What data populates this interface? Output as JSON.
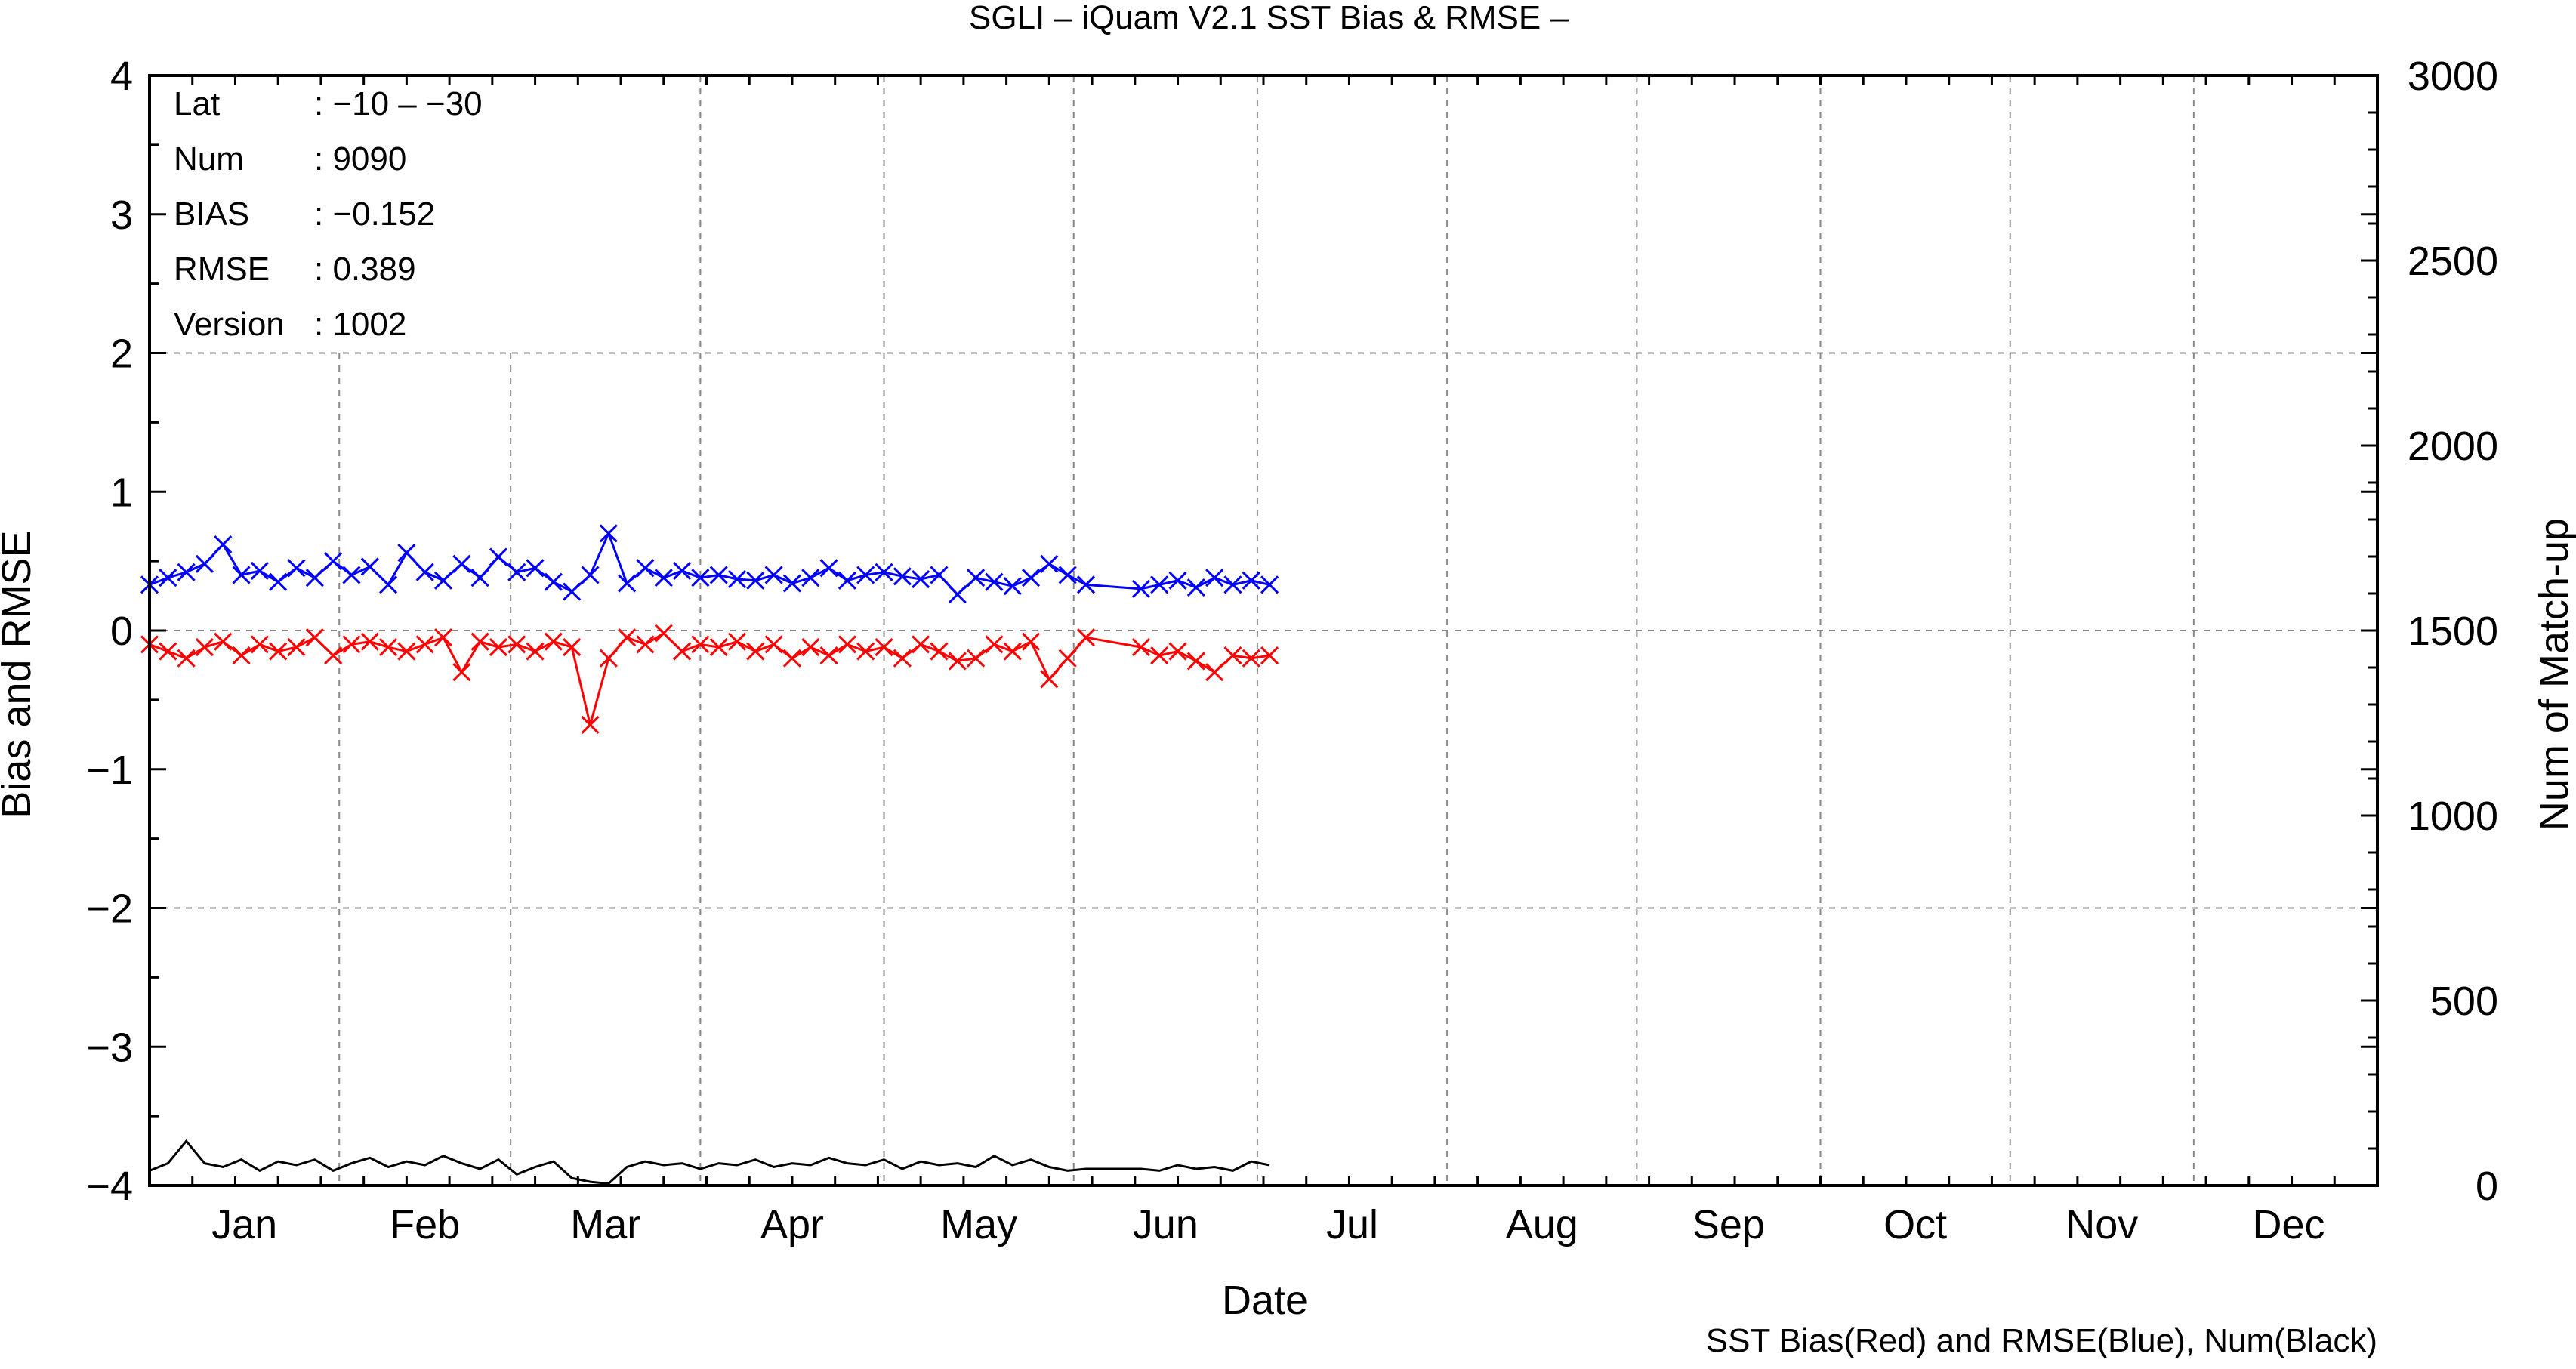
{
  "chart_data": {
    "type": "line",
    "title": "SGLI – iQuam V2.1 SST Bias & RMSE  –",
    "xlabel": "Date",
    "ylabel": "Bias and RMSE",
    "y2label": "Num of Match-up",
    "footer": "SST Bias(Red) and RMSE(Blue), Num(Black)",
    "x_unit": "day of year",
    "xlim": [
      1,
      365
    ],
    "ylim": [
      -4,
      4
    ],
    "y2lim": [
      0,
      3000
    ],
    "grid": true,
    "month_labels": [
      "Jan",
      "Feb",
      "Mar",
      "Apr",
      "May",
      "Jun",
      "Jul",
      "Aug",
      "Sep",
      "Oct",
      "Nov",
      "Dec"
    ],
    "y_ticks": [
      "4",
      "3",
      "2",
      "1",
      "0",
      "−1",
      "−2",
      "−3",
      "−4"
    ],
    "y2_ticks": [
      "3000",
      "2500",
      "2000",
      "1500",
      "1000",
      "500",
      "0"
    ],
    "stats": {
      "lat_label": "Lat",
      "lat_value": ": −10 – −30",
      "num_label": "Num",
      "num_value": ": 9090",
      "bias_label": "BIAS",
      "bias_value": ": −0.152",
      "rmse_label": "RMSE",
      "rmse_value": ": 0.389",
      "version_label": "Version",
      "version_value": ": 1002"
    },
    "series": [
      {
        "name": "RMSE",
        "color": "#0000ff",
        "axis": "left",
        "x": [
          1,
          4,
          7,
          10,
          13,
          16,
          19,
          22,
          25,
          28,
          31,
          34,
          37,
          40,
          43,
          46,
          49,
          52,
          55,
          58,
          61,
          64,
          67,
          70,
          73,
          76,
          79,
          82,
          85,
          88,
          91,
          94,
          97,
          100,
          103,
          106,
          109,
          112,
          115,
          118,
          121,
          124,
          127,
          130,
          133,
          136,
          139,
          142,
          145,
          148,
          151,
          154,
          163,
          166,
          169,
          172,
          175,
          178,
          181,
          184
        ],
        "y": [
          0.33,
          0.38,
          0.42,
          0.48,
          0.62,
          0.4,
          0.43,
          0.35,
          0.45,
          0.38,
          0.5,
          0.4,
          0.46,
          0.33,
          0.56,
          0.42,
          0.36,
          0.48,
          0.38,
          0.53,
          0.42,
          0.45,
          0.35,
          0.28,
          0.4,
          0.7,
          0.34,
          0.45,
          0.38,
          0.43,
          0.38,
          0.4,
          0.37,
          0.36,
          0.4,
          0.34,
          0.38,
          0.45,
          0.36,
          0.4,
          0.42,
          0.39,
          0.37,
          0.4,
          0.26,
          0.38,
          0.35,
          0.32,
          0.38,
          0.48,
          0.4,
          0.33,
          0.3,
          0.33,
          0.36,
          0.31,
          0.38,
          0.33,
          0.36,
          0.33
        ]
      },
      {
        "name": "Bias",
        "color": "#ff0000",
        "axis": "left",
        "x": [
          1,
          4,
          7,
          10,
          13,
          16,
          19,
          22,
          25,
          28,
          31,
          34,
          37,
          40,
          43,
          46,
          49,
          52,
          55,
          58,
          61,
          64,
          67,
          70,
          73,
          76,
          79,
          82,
          85,
          88,
          91,
          94,
          97,
          100,
          103,
          106,
          109,
          112,
          115,
          118,
          121,
          124,
          127,
          130,
          133,
          136,
          139,
          142,
          145,
          148,
          151,
          154,
          163,
          166,
          169,
          172,
          175,
          178,
          181,
          184
        ],
        "y": [
          -0.1,
          -0.15,
          -0.2,
          -0.12,
          -0.08,
          -0.18,
          -0.1,
          -0.15,
          -0.12,
          -0.05,
          -0.18,
          -0.1,
          -0.08,
          -0.12,
          -0.15,
          -0.1,
          -0.05,
          -0.3,
          -0.08,
          -0.12,
          -0.1,
          -0.15,
          -0.08,
          -0.12,
          -0.68,
          -0.2,
          -0.05,
          -0.1,
          -0.02,
          -0.15,
          -0.1,
          -0.12,
          -0.08,
          -0.15,
          -0.1,
          -0.2,
          -0.12,
          -0.18,
          -0.1,
          -0.15,
          -0.12,
          -0.2,
          -0.1,
          -0.15,
          -0.22,
          -0.2,
          -0.1,
          -0.15,
          -0.08,
          -0.35,
          -0.2,
          -0.05,
          -0.12,
          -0.18,
          -0.15,
          -0.22,
          -0.3,
          -0.18,
          -0.2,
          -0.18
        ]
      },
      {
        "name": "Num",
        "color": "#000000",
        "axis": "right",
        "x": [
          1,
          4,
          7,
          10,
          13,
          16,
          19,
          22,
          25,
          28,
          31,
          34,
          37,
          40,
          43,
          46,
          49,
          52,
          55,
          58,
          61,
          64,
          67,
          70,
          73,
          76,
          79,
          82,
          85,
          88,
          91,
          94,
          97,
          100,
          103,
          106,
          109,
          112,
          115,
          118,
          121,
          124,
          127,
          130,
          133,
          136,
          139,
          142,
          145,
          148,
          151,
          154,
          163,
          166,
          169,
          172,
          175,
          178,
          181,
          184
        ],
        "y": [
          40,
          60,
          120,
          60,
          50,
          70,
          40,
          65,
          55,
          70,
          40,
          60,
          75,
          50,
          65,
          55,
          80,
          60,
          45,
          70,
          30,
          50,
          65,
          20,
          10,
          5,
          50,
          65,
          55,
          60,
          45,
          60,
          55,
          70,
          50,
          60,
          55,
          75,
          60,
          55,
          70,
          45,
          65,
          55,
          60,
          50,
          80,
          55,
          70,
          50,
          40,
          45,
          45,
          40,
          55,
          45,
          50,
          40,
          65,
          55
        ]
      }
    ]
  }
}
